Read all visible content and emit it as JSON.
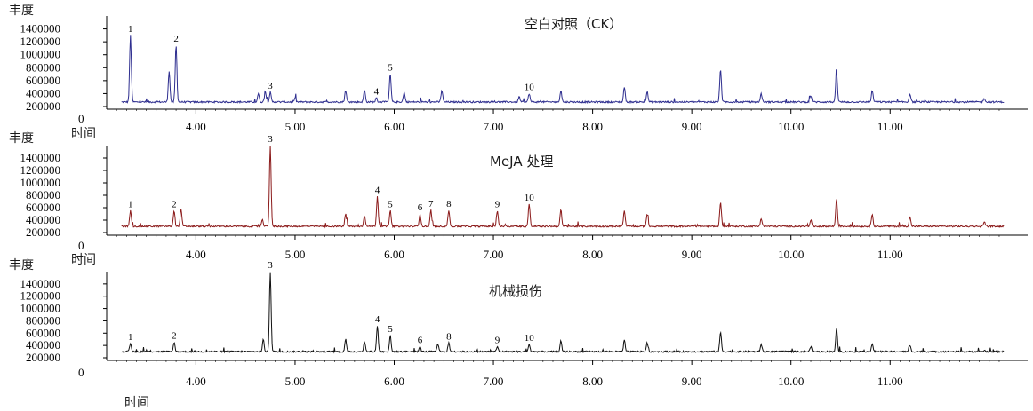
{
  "chart_data": [
    {
      "type": "line",
      "title": "空白对照（CK）",
      "ylabel": "丰度",
      "xlabel": "时间",
      "color": "#2e2e8f",
      "xlim": [
        3.1,
        12.2
      ],
      "ylim": [
        200000,
        1600000
      ],
      "xticks": [
        "4.00",
        "5.00",
        "6.00",
        "7.00",
        "8.00",
        "9.00",
        "10.00",
        "11.00"
      ],
      "yticks": [
        "200000",
        "400000",
        "600000",
        "800000",
        "1000000",
        "1200000",
        "1400000"
      ],
      "zero_label": "0",
      "baseline": 270000,
      "peaks": [
        {
          "x": 3.34,
          "y": 1300000,
          "label": "1"
        },
        {
          "x": 3.73,
          "y": 750000
        },
        {
          "x": 3.8,
          "y": 1150000,
          "label": "2"
        },
        {
          "x": 4.63,
          "y": 400000
        },
        {
          "x": 4.7,
          "y": 430000
        },
        {
          "x": 4.75,
          "y": 420000,
          "label": "3"
        },
        {
          "x": 5.0,
          "y": 330000
        },
        {
          "x": 5.51,
          "y": 450000
        },
        {
          "x": 5.7,
          "y": 450000
        },
        {
          "x": 5.82,
          "y": 330000,
          "label": "4"
        },
        {
          "x": 5.96,
          "y": 700000,
          "label": "5"
        },
        {
          "x": 6.1,
          "y": 420000
        },
        {
          "x": 6.48,
          "y": 450000
        },
        {
          "x": 7.26,
          "y": 350000
        },
        {
          "x": 7.36,
          "y": 400000,
          "label": "10"
        },
        {
          "x": 7.68,
          "y": 450000
        },
        {
          "x": 8.32,
          "y": 500000
        },
        {
          "x": 8.55,
          "y": 430000
        },
        {
          "x": 9.29,
          "y": 780000
        },
        {
          "x": 9.7,
          "y": 400000
        },
        {
          "x": 10.2,
          "y": 370000
        },
        {
          "x": 10.46,
          "y": 750000
        },
        {
          "x": 10.82,
          "y": 450000
        },
        {
          "x": 11.2,
          "y": 400000
        },
        {
          "x": 11.95,
          "y": 330000
        }
      ]
    },
    {
      "type": "line",
      "title": "MeJA 处理",
      "ylabel": "丰度",
      "xlabel": "时间",
      "color": "#8b1a1a",
      "xlim": [
        3.1,
        12.2
      ],
      "ylim": [
        200000,
        1600000
      ],
      "xticks": [
        "4.00",
        "5.00",
        "6.00",
        "7.00",
        "8.00",
        "9.00",
        "10.00",
        "11.00"
      ],
      "yticks": [
        "200000",
        "400000",
        "600000",
        "800000",
        "1000000",
        "1200000",
        "1400000"
      ],
      "zero_label": "0",
      "baseline": 300000,
      "peaks": [
        {
          "x": 3.34,
          "y": 550000,
          "label": "1"
        },
        {
          "x": 3.78,
          "y": 550000,
          "label": "2"
        },
        {
          "x": 3.85,
          "y": 580000
        },
        {
          "x": 4.67,
          "y": 400000
        },
        {
          "x": 4.75,
          "y": 1600000,
          "label": "3"
        },
        {
          "x": 5.51,
          "y": 500000
        },
        {
          "x": 5.7,
          "y": 480000
        },
        {
          "x": 5.83,
          "y": 780000,
          "label": "4"
        },
        {
          "x": 5.96,
          "y": 550000,
          "label": "5"
        },
        {
          "x": 6.26,
          "y": 500000,
          "label": "6"
        },
        {
          "x": 6.37,
          "y": 560000,
          "label": "7"
        },
        {
          "x": 6.55,
          "y": 560000,
          "label": "8"
        },
        {
          "x": 7.04,
          "y": 550000,
          "label": "9"
        },
        {
          "x": 7.36,
          "y": 660000,
          "label": "10"
        },
        {
          "x": 7.68,
          "y": 560000
        },
        {
          "x": 8.32,
          "y": 550000
        },
        {
          "x": 8.55,
          "y": 500000
        },
        {
          "x": 9.29,
          "y": 700000
        },
        {
          "x": 9.7,
          "y": 430000
        },
        {
          "x": 10.2,
          "y": 400000
        },
        {
          "x": 10.46,
          "y": 750000
        },
        {
          "x": 10.82,
          "y": 500000
        },
        {
          "x": 11.2,
          "y": 450000
        },
        {
          "x": 11.95,
          "y": 380000
        }
      ]
    },
    {
      "type": "line",
      "title": "机械损伤",
      "ylabel": "丰度",
      "xlabel": "时间",
      "color": "#111111",
      "xlim": [
        3.1,
        12.2
      ],
      "ylim": [
        200000,
        1600000
      ],
      "xticks": [
        "4.00",
        "5.00",
        "6.00",
        "7.00",
        "8.00",
        "9.00",
        "10.00",
        "11.00"
      ],
      "yticks": [
        "200000",
        "400000",
        "600000",
        "800000",
        "1000000",
        "1200000",
        "1400000"
      ],
      "zero_label": "0",
      "baseline": 300000,
      "peaks": [
        {
          "x": 3.34,
          "y": 430000,
          "label": "1"
        },
        {
          "x": 3.78,
          "y": 450000,
          "label": "2"
        },
        {
          "x": 4.68,
          "y": 500000
        },
        {
          "x": 4.75,
          "y": 1600000,
          "label": "3"
        },
        {
          "x": 5.51,
          "y": 500000
        },
        {
          "x": 5.7,
          "y": 460000
        },
        {
          "x": 5.83,
          "y": 720000,
          "label": "4"
        },
        {
          "x": 5.96,
          "y": 560000,
          "label": "5"
        },
        {
          "x": 6.26,
          "y": 380000,
          "label": "6"
        },
        {
          "x": 6.44,
          "y": 420000
        },
        {
          "x": 6.55,
          "y": 440000,
          "label": "8"
        },
        {
          "x": 7.04,
          "y": 380000,
          "label": "9"
        },
        {
          "x": 7.36,
          "y": 420000,
          "label": "10"
        },
        {
          "x": 7.68,
          "y": 470000
        },
        {
          "x": 8.32,
          "y": 480000
        },
        {
          "x": 8.55,
          "y": 440000
        },
        {
          "x": 9.29,
          "y": 620000
        },
        {
          "x": 9.7,
          "y": 420000
        },
        {
          "x": 10.2,
          "y": 380000
        },
        {
          "x": 10.46,
          "y": 680000
        },
        {
          "x": 10.82,
          "y": 420000
        },
        {
          "x": 11.2,
          "y": 400000
        },
        {
          "x": 11.95,
          "y": 320000
        }
      ]
    }
  ]
}
